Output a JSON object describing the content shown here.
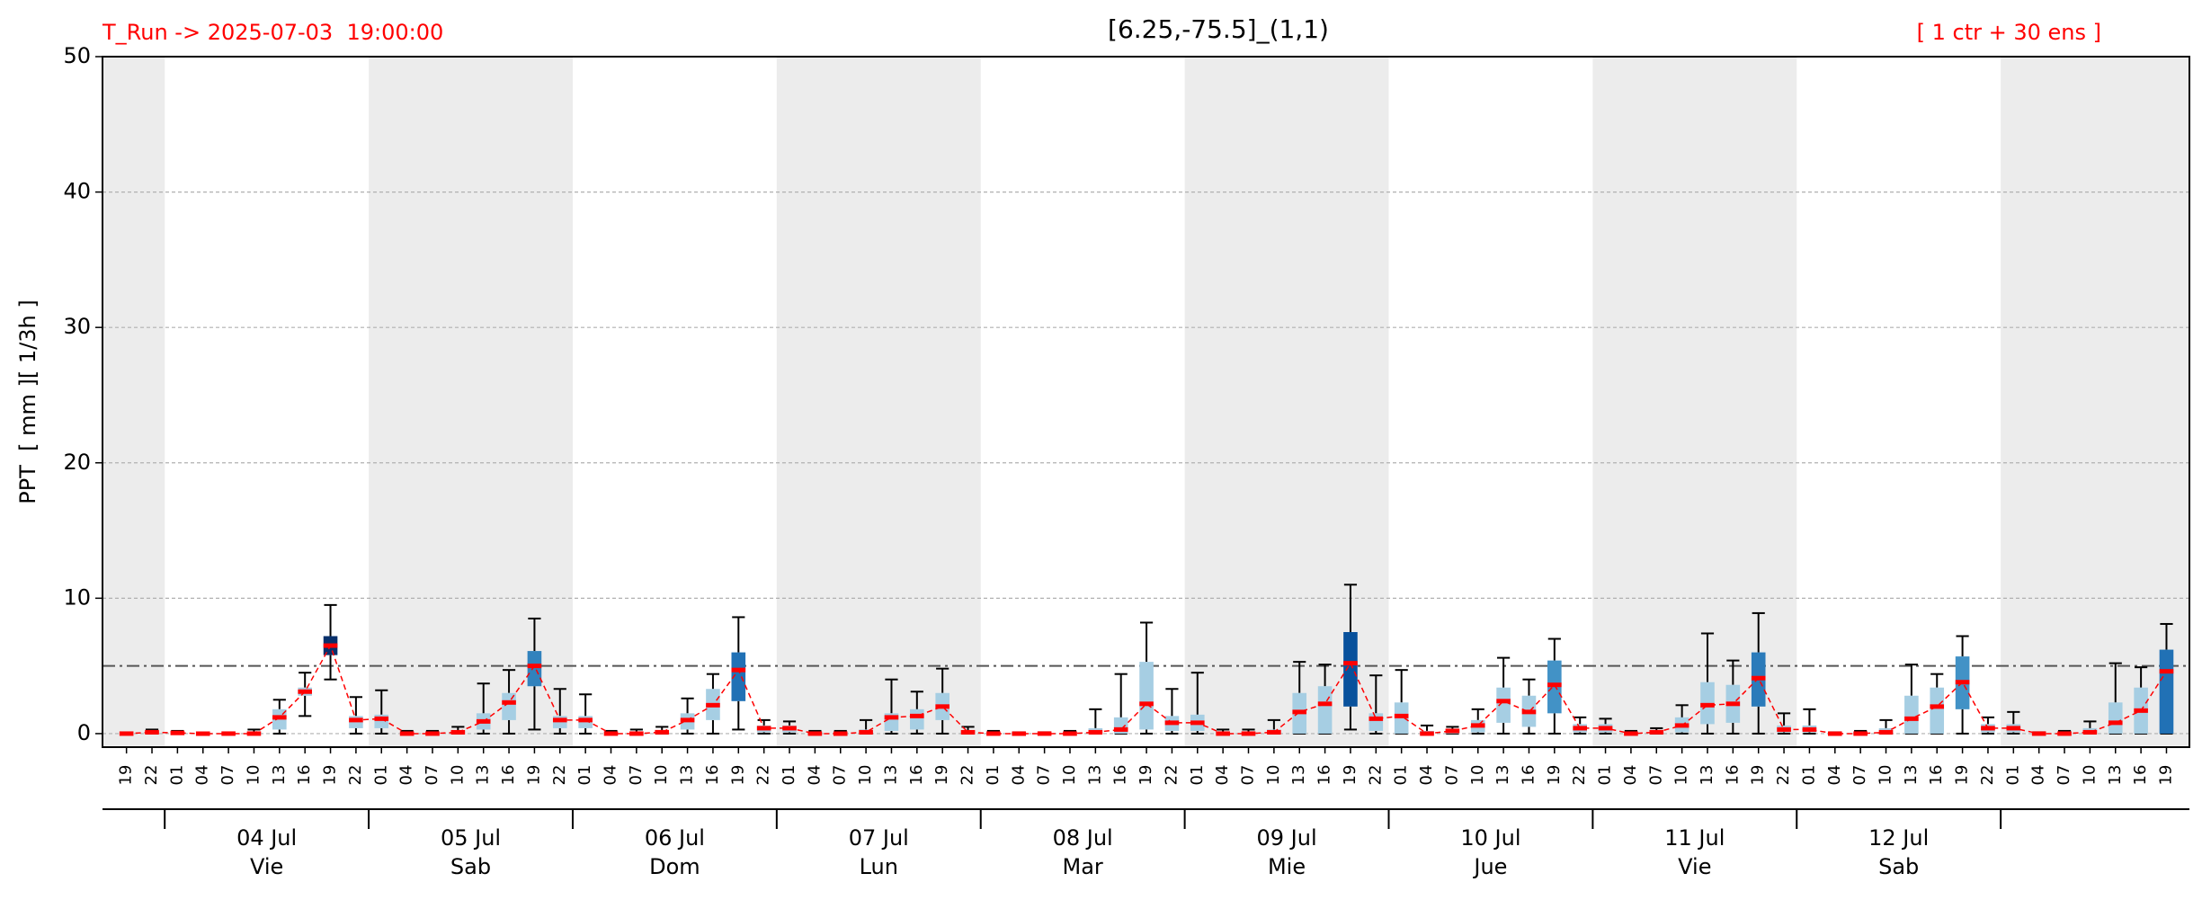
{
  "chart_data": {
    "type": "box",
    "title": "[6.25,-75.5]_(1,1)",
    "run_label": "T_Run -> 2025-07-03  19:00:00",
    "ens_label": "[ 1 ctr + 30 ens ]",
    "y_label": "PPT  [ mm ][ 1/3h ]",
    "categories": [
      "19",
      "22",
      "01",
      "04",
      "07",
      "10",
      "13",
      "16",
      "19",
      "22",
      "01",
      "04",
      "07",
      "10",
      "13",
      "16",
      "19",
      "22",
      "01",
      "04",
      "07",
      "10",
      "13",
      "16",
      "19",
      "22",
      "01",
      "04",
      "07",
      "10",
      "13",
      "16",
      "19",
      "22",
      "01",
      "04",
      "07",
      "10",
      "13",
      "16",
      "19",
      "22",
      "01",
      "04",
      "07",
      "10",
      "13",
      "16",
      "19",
      "22",
      "01",
      "04",
      "07",
      "10",
      "13",
      "16",
      "19",
      "22",
      "01",
      "04",
      "07",
      "10",
      "13",
      "16",
      "19",
      "22",
      "01",
      "04",
      "07",
      "10",
      "13",
      "16",
      "19",
      "22",
      "01",
      "04",
      "07",
      "10",
      "13",
      "16",
      "19"
    ],
    "days": [
      {
        "date": "04 Jul",
        "weekday": "Vie"
      },
      {
        "date": "05 Jul",
        "weekday": "Sab"
      },
      {
        "date": "06 Jul",
        "weekday": "Dom"
      },
      {
        "date": "07 Jul",
        "weekday": "Lun"
      },
      {
        "date": "08 Jul",
        "weekday": "Mar"
      },
      {
        "date": "09 Jul",
        "weekday": "Mie"
      },
      {
        "date": "10 Jul",
        "weekday": "Jue"
      },
      {
        "date": "11 Jul",
        "weekday": "Vie"
      },
      {
        "date": "12 Jul",
        "weekday": "Sab"
      }
    ],
    "median": [
      0,
      0.1,
      0.05,
      0,
      0,
      0,
      1.2,
      3.1,
      6.5,
      1.0,
      1.1,
      0,
      0,
      0.1,
      0.9,
      2.3,
      5.0,
      1.0,
      1.0,
      0,
      0,
      0.1,
      1.0,
      2.1,
      4.7,
      0.4,
      0.4,
      0,
      0,
      0.1,
      1.2,
      1.3,
      2.0,
      0.1,
      0,
      0,
      0,
      0,
      0.1,
      0.3,
      2.2,
      0.8,
      0.8,
      0,
      0,
      0.1,
      1.6,
      2.2,
      5.2,
      1.1,
      1.3,
      0,
      0.2,
      0.6,
      2.4,
      1.6,
      3.6,
      0.4,
      0.4,
      0,
      0.1,
      0.6,
      2.1,
      2.2,
      4.1,
      0.3,
      0.3,
      0,
      0,
      0.1,
      1.1,
      2.0,
      3.8,
      0.4,
      0.4,
      0,
      0,
      0.1,
      0.8,
      1.7,
      4.6
    ],
    "q1": [
      0,
      0,
      0,
      0,
      0,
      0,
      0.3,
      2.8,
      5.8,
      0.4,
      0.4,
      0,
      0,
      0,
      0.3,
      1.0,
      3.5,
      0.4,
      0.4,
      0,
      0,
      0,
      0.3,
      1.0,
      2.4,
      0.1,
      0.1,
      0,
      0,
      0,
      0.2,
      0.3,
      1.0,
      0,
      0,
      0,
      0,
      0,
      0,
      0,
      0.3,
      0.2,
      0.2,
      0,
      0,
      0,
      0,
      0,
      2.0,
      0.2,
      0,
      0,
      0,
      0.1,
      0.8,
      0.5,
      1.5,
      0.1,
      0.1,
      0,
      0,
      0.1,
      0.7,
      0.8,
      2.0,
      0.1,
      0.1,
      0,
      0,
      0,
      0,
      0,
      1.8,
      0.1,
      0.1,
      0,
      0,
      0,
      0,
      0,
      0
    ],
    "q3": [
      0,
      0.2,
      0.1,
      0,
      0,
      0.1,
      1.8,
      3.4,
      7.2,
      1.3,
      1.4,
      0.1,
      0,
      0.2,
      1.5,
      3.0,
      6.1,
      1.3,
      1.3,
      0,
      0,
      0.2,
      1.5,
      3.3,
      6.0,
      0.6,
      0.6,
      0.1,
      0.1,
      0.3,
      1.5,
      1.8,
      3.0,
      0.2,
      0.1,
      0,
      0,
      0.1,
      0.4,
      1.2,
      5.3,
      1.3,
      1.4,
      0.1,
      0.1,
      0.3,
      3.0,
      3.5,
      7.5,
      1.5,
      2.3,
      0.2,
      0.3,
      1.0,
      3.4,
      2.8,
      5.4,
      0.7,
      0.7,
      0.1,
      0.2,
      1.2,
      3.8,
      3.6,
      6.0,
      0.6,
      0.6,
      0,
      0.1,
      0.4,
      2.8,
      3.4,
      5.7,
      0.7,
      0.7,
      0,
      0.1,
      0.4,
      2.3,
      3.4,
      6.2
    ],
    "whislo": [
      0,
      0,
      0,
      0,
      0,
      0,
      0,
      1.3,
      4.0,
      0,
      0,
      0,
      0,
      0,
      0,
      0,
      0.3,
      0,
      0,
      0,
      0,
      0,
      0,
      0,
      0.3,
      0,
      0,
      0,
      0,
      0,
      0,
      0,
      0,
      0,
      0,
      0,
      0,
      0,
      0,
      0,
      0,
      0,
      0,
      0,
      0,
      0,
      0,
      0,
      0.3,
      0,
      0,
      0,
      0,
      0,
      0,
      0,
      0,
      0,
      0,
      0,
      0,
      0,
      0,
      0,
      0,
      0,
      0,
      0,
      0,
      0,
      0,
      0,
      0,
      0,
      0,
      0,
      0,
      0,
      0,
      0,
      0
    ],
    "whishi": [
      0,
      0.3,
      0.2,
      0,
      0,
      0.3,
      2.5,
      4.5,
      9.5,
      2.7,
      3.2,
      0.2,
      0.2,
      0.5,
      3.7,
      4.7,
      8.5,
      3.3,
      2.9,
      0.2,
      0.3,
      0.5,
      2.6,
      4.4,
      8.6,
      1.0,
      0.9,
      0.2,
      0.2,
      1.0,
      4.0,
      3.1,
      4.8,
      0.5,
      0.2,
      0.1,
      0.1,
      0.2,
      1.8,
      4.4,
      8.2,
      3.3,
      4.5,
      0.3,
      0.3,
      1.0,
      5.3,
      5.1,
      11.0,
      4.3,
      4.7,
      0.6,
      0.5,
      1.8,
      5.6,
      4.0,
      7.0,
      1.2,
      1.1,
      0.2,
      0.4,
      2.1,
      7.4,
      5.4,
      8.9,
      1.5,
      1.8,
      0.1,
      0.2,
      1.0,
      5.1,
      4.4,
      7.2,
      1.2,
      1.6,
      0.1,
      0.2,
      0.9,
      5.2,
      4.9,
      8.1
    ],
    "box_color": "#a6cee3",
    "strong_boxes": [
      {
        "index": 8,
        "color": "#08306b"
      },
      {
        "index": 16,
        "color": "#3182bd"
      },
      {
        "index": 24,
        "color": "#2171b5"
      },
      {
        "index": 48,
        "color": "#08519c"
      },
      {
        "index": 56,
        "color": "#4292c6"
      },
      {
        "index": 64,
        "color": "#2b7bba"
      },
      {
        "index": 72,
        "color": "#4292c6"
      },
      {
        "index": 80,
        "color": "#2171b5"
      }
    ],
    "median_color": "#ff0000",
    "threshold": 5,
    "ylim": [
      -1,
      50
    ],
    "yticks": [
      0,
      10,
      20,
      30,
      40,
      50
    ],
    "grid": true
  }
}
